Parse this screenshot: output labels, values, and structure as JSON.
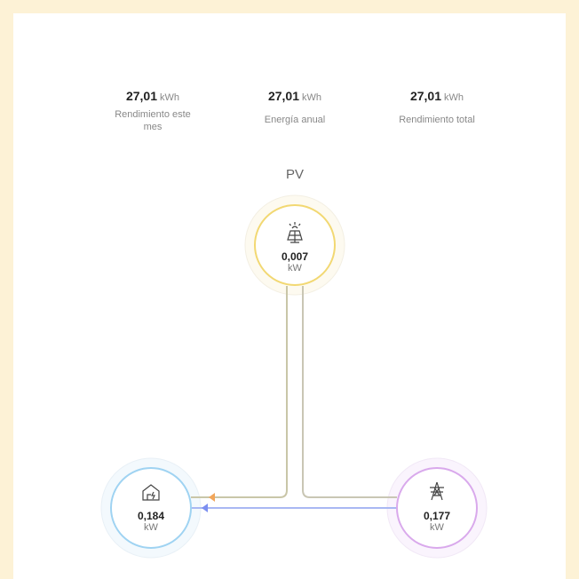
{
  "stats": [
    {
      "value": "27,01",
      "unit": "kWh",
      "label": "Rendimiento este mes"
    },
    {
      "value": "27,01",
      "unit": "kWh",
      "label": "Energía anual"
    },
    {
      "value": "27,01",
      "unit": "kWh",
      "label": "Rendimiento total"
    }
  ],
  "nodes": {
    "pv": {
      "label": "PV",
      "value": "0,007",
      "unit": "kW"
    },
    "home": {
      "value": "0,184",
      "unit": "kW"
    },
    "grid": {
      "value": "0,177",
      "unit": "kW"
    }
  }
}
